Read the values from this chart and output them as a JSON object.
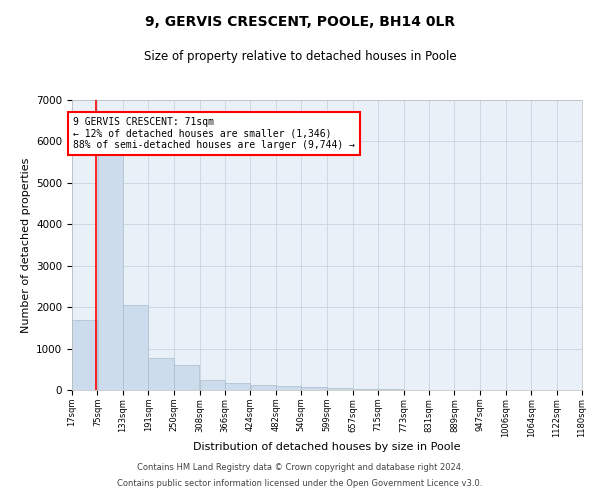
{
  "title1": "9, GERVIS CRESCENT, POOLE, BH14 0LR",
  "title2": "Size of property relative to detached houses in Poole",
  "xlabel": "Distribution of detached houses by size in Poole",
  "ylabel": "Number of detached properties",
  "bar_color": "#ccdcec",
  "bar_edgecolor": "#aabccc",
  "grid_color": "#c8d4e4",
  "background_color": "#eaf0f8",
  "annotation_text": "9 GERVIS CRESCENT: 71sqm\n← 12% of detached houses are smaller (1,346)\n88% of semi-detached houses are larger (9,744) →",
  "annotation_box_color": "white",
  "annotation_box_edgecolor": "red",
  "vline_x": 71,
  "vline_color": "red",
  "bins": [
    17,
    75,
    133,
    191,
    250,
    308,
    366,
    424,
    482,
    540,
    599,
    657,
    715,
    773,
    831,
    889,
    947,
    1006,
    1064,
    1122,
    1180
  ],
  "counts": [
    1700,
    5900,
    2050,
    780,
    600,
    250,
    175,
    115,
    90,
    65,
    45,
    25,
    15,
    5,
    3,
    2,
    1,
    1,
    1,
    1
  ],
  "tick_labels": [
    "17sqm",
    "75sqm",
    "133sqm",
    "191sqm",
    "250sqm",
    "308sqm",
    "366sqm",
    "424sqm",
    "482sqm",
    "540sqm",
    "599sqm",
    "657sqm",
    "715sqm",
    "773sqm",
    "831sqm",
    "889sqm",
    "947sqm",
    "1006sqm",
    "1064sqm",
    "1122sqm",
    "1180sqm"
  ],
  "ylim": [
    0,
    7000
  ],
  "yticks": [
    0,
    1000,
    2000,
    3000,
    4000,
    5000,
    6000,
    7000
  ],
  "footer1": "Contains HM Land Registry data © Crown copyright and database right 2024.",
  "footer2": "Contains public sector information licensed under the Open Government Licence v3.0."
}
